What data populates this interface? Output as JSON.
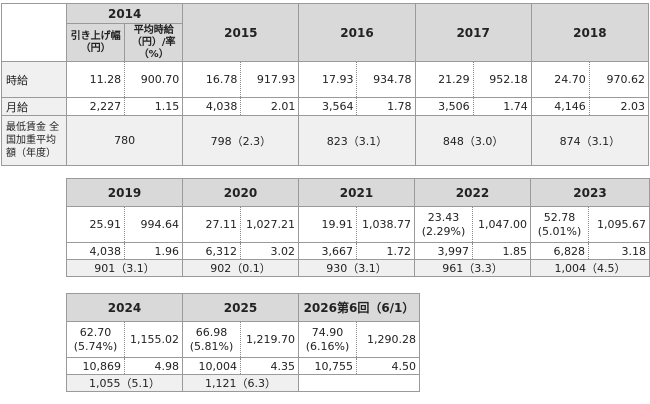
{
  "table1": {
    "h2014": "2014",
    "sub_raise": "引き上げ幅（円）",
    "sub_avg": "平均時給（円）/率（%）",
    "h2015": "2015",
    "h2016": "2016",
    "h2017": "2017",
    "h2018": "2018",
    "row_hourly": "時給",
    "row_monthly": "月給",
    "row_min": "最低賃金 全国加重平均額（年度）",
    "hourly": [
      [
        "11.28",
        "900.70"
      ],
      [
        "16.78",
        "917.93"
      ],
      [
        "17.93",
        "934.78"
      ],
      [
        "21.29",
        "952.18"
      ],
      [
        "24.70",
        "970.62"
      ]
    ],
    "monthly": [
      [
        "2,227",
        "1.15"
      ],
      [
        "4,038",
        "2.01"
      ],
      [
        "3,564",
        "1.78"
      ],
      [
        "3,506",
        "1.74"
      ],
      [
        "4,146",
        "2.03"
      ]
    ],
    "min": [
      "780",
      "798（2.3）",
      "823（3.1）",
      "848（3.0）",
      "874（3.1）"
    ]
  },
  "table2": {
    "years": [
      "2019",
      "2020",
      "2021",
      "2022",
      "2023"
    ],
    "hourly": [
      {
        "raise": "25.91",
        "pct": "",
        "avg": "994.64"
      },
      {
        "raise": "27.11",
        "pct": "",
        "avg": "1,027.21"
      },
      {
        "raise": "19.91",
        "pct": "",
        "avg": "1,038.77"
      },
      {
        "raise": "23.43",
        "pct": "(2.29%)",
        "avg": "1,047.00"
      },
      {
        "raise": "52.78",
        "pct": "(5.01%)",
        "avg": "1,095.67"
      }
    ],
    "monthly": [
      [
        "4,038",
        "1.96"
      ],
      [
        "6,312",
        "3.02"
      ],
      [
        "3,667",
        "1.72"
      ],
      [
        "3,997",
        "1.85"
      ],
      [
        "6,828",
        "3.18"
      ]
    ],
    "min": [
      "901（3.1）",
      "902（0.1）",
      "930（3.1）",
      "961（3.3）",
      "1,004（4.5）"
    ]
  },
  "table3": {
    "years": [
      "2024",
      "2025",
      "2026第6回（6/1）"
    ],
    "hourly": [
      {
        "raise": "62.70",
        "pct": "(5.74%)",
        "avg": "1,155.02"
      },
      {
        "raise": "66.98",
        "pct": "(5.81%)",
        "avg": "1,219.70"
      },
      {
        "raise": "74.90",
        "pct": "(6.16%)",
        "avg": "1,290.28"
      }
    ],
    "monthly": [
      [
        "10,869",
        "4.98"
      ],
      [
        "10,004",
        "4.35"
      ],
      [
        "10,755",
        "4.50"
      ]
    ],
    "min": [
      "1,055（5.1）",
      "1,121（6.3）",
      ""
    ]
  }
}
